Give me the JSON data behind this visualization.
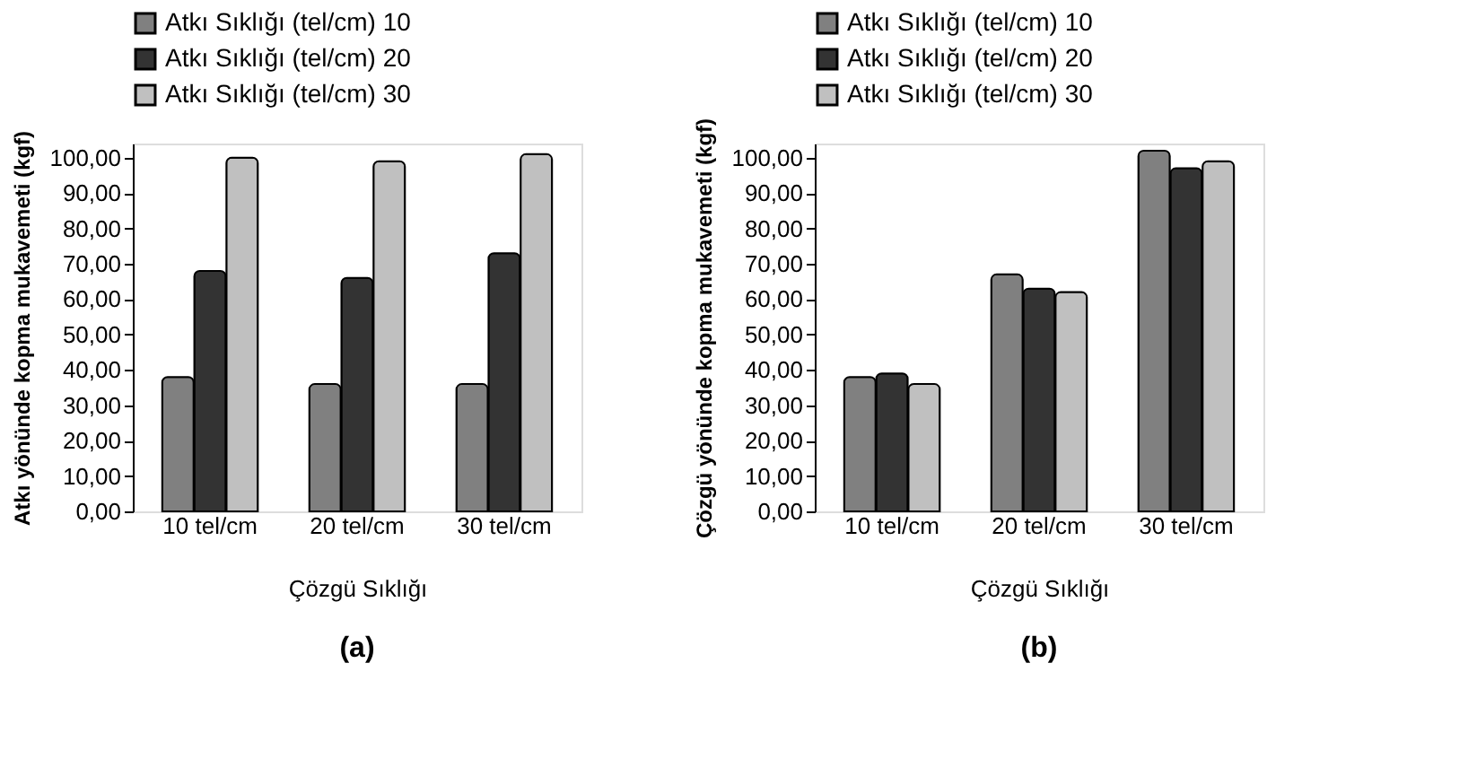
{
  "chart_data": [
    {
      "type": "bar",
      "categories": [
        "10 tel/cm",
        "20 tel/cm",
        "30 tel/cm"
      ],
      "xlabel": "Çözgü Sıklığı",
      "ylabel": "Atkı yönünde kopma mukavemeti (kgf)",
      "series": [
        {
          "name": "Atkı Sıklığı (tel/cm) 10",
          "color": "#808080",
          "values": [
            38,
            36,
            36
          ]
        },
        {
          "name": "Atkı Sıklığı (tel/cm) 20",
          "color": "#333333",
          "values": [
            68,
            66,
            73
          ]
        },
        {
          "name": "Atkı Sıklığı (tel/cm) 30",
          "color": "#c0c0c0",
          "values": [
            100,
            99,
            101
          ]
        }
      ],
      "ylim": [
        0,
        104
      ],
      "yticks": [
        {
          "value": 0,
          "label": "0,00"
        },
        {
          "value": 10,
          "label": "10,00"
        },
        {
          "value": 20,
          "label": "20,00"
        },
        {
          "value": 30,
          "label": "30,00"
        },
        {
          "value": 40,
          "label": "40,00"
        },
        {
          "value": 50,
          "label": "50,00"
        },
        {
          "value": 60,
          "label": "60,00"
        },
        {
          "value": 70,
          "label": "70,00"
        },
        {
          "value": 80,
          "label": "80,00"
        },
        {
          "value": 90,
          "label": "90,00"
        },
        {
          "value": 100,
          "label": "100,00"
        }
      ],
      "legend": "top",
      "grid": false,
      "annotations": [
        "(a)"
      ]
    },
    {
      "type": "bar",
      "categories": [
        "10 tel/cm",
        "20 tel/cm",
        "30 tel/cm"
      ],
      "xlabel": "Çözgü Sıklığı",
      "ylabel": "Çözgü yönünde kopma mukavemeti (kgf)",
      "series": [
        {
          "name": "Atkı Sıklığı (tel/cm) 10",
          "color": "#808080",
          "values": [
            38,
            67,
            102
          ]
        },
        {
          "name": "Atkı Sıklığı (tel/cm) 20",
          "color": "#333333",
          "values": [
            39,
            63,
            97
          ]
        },
        {
          "name": "Atkı Sıklığı (tel/cm) 30",
          "color": "#c0c0c0",
          "values": [
            36,
            62,
            99
          ]
        }
      ],
      "ylim": [
        0,
        104
      ],
      "yticks": [
        {
          "value": 0,
          "label": "0,00"
        },
        {
          "value": 10,
          "label": "10,00"
        },
        {
          "value": 20,
          "label": "20,00"
        },
        {
          "value": 30,
          "label": "30,00"
        },
        {
          "value": 40,
          "label": "40,00"
        },
        {
          "value": 50,
          "label": "50,00"
        },
        {
          "value": 60,
          "label": "60,00"
        },
        {
          "value": 70,
          "label": "70,00"
        },
        {
          "value": 80,
          "label": "80,00"
        },
        {
          "value": 90,
          "label": "90,00"
        },
        {
          "value": 100,
          "label": "100,00"
        }
      ],
      "legend": "top",
      "grid": false,
      "annotations": [
        "(b)"
      ]
    }
  ]
}
